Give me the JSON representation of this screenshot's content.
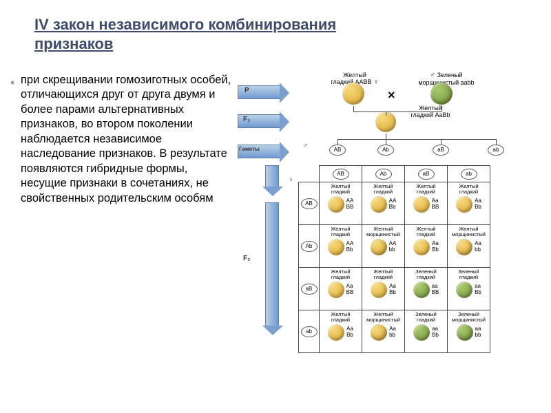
{
  "title": "IV закон независимого комбинирования признаков",
  "body": "при скрещивании гомозиготных особей, отличающихся друг от друга двумя и более парами альтернативных признаков, во втором поколении наблюдается независимое наследование признаков.  В результате появляются гибридные формы, несущие признаки в сочетаниях, не свойственных родительским особям",
  "labels": {
    "P": "P",
    "F1": "F₁",
    "F2": "F₂",
    "gametes": "Гаметы",
    "female": "♀",
    "male": "♂",
    "cross": "×"
  },
  "parents": {
    "p1": {
      "phenotype": "Желтый\nгладкий",
      "genotype": "AABB",
      "color": "yellow",
      "texture": "smooth"
    },
    "p2": {
      "phenotype": "Зеленый\nморщинистый",
      "genotype": "aabb",
      "color": "green",
      "texture": "wrinkled"
    }
  },
  "f1": {
    "phenotype": "Желтый\nгладкий",
    "genotype": "AaBb",
    "color": "yellow",
    "texture": "smooth"
  },
  "gametes": [
    "AB",
    "Ab",
    "aB",
    "ab"
  ],
  "punnett": {
    "rows": [
      "AB",
      "Ab",
      "aB",
      "ab"
    ],
    "cols": [
      "AB",
      "Ab",
      "aB",
      "ab"
    ],
    "cells": [
      [
        {
          "label": "Желтый\nгладкий",
          "geno1": "AA",
          "geno2": "BB",
          "color": "yellow",
          "tex": "smooth"
        },
        {
          "label": "Желтый\nгладкий",
          "geno1": "AA",
          "geno2": "Bb",
          "color": "yellow",
          "tex": "smooth"
        },
        {
          "label": "Желтый\nгладкий",
          "geno1": "Aa",
          "geno2": "BB",
          "color": "yellow",
          "tex": "smooth"
        },
        {
          "label": "Желтый\nгладкий",
          "geno1": "Aa",
          "geno2": "Bb",
          "color": "yellow",
          "tex": "smooth"
        }
      ],
      [
        {
          "label": "Желтый\nгладкий",
          "geno1": "AA",
          "geno2": "Bb",
          "color": "yellow",
          "tex": "smooth"
        },
        {
          "label": "Желтый\nморщинистый",
          "geno1": "AA",
          "geno2": "bb",
          "color": "yellow",
          "tex": "wrinkled"
        },
        {
          "label": "Желтый\nгладкий",
          "geno1": "Aa",
          "geno2": "Bb",
          "color": "yellow",
          "tex": "smooth"
        },
        {
          "label": "Желтый\nморщинистый",
          "geno1": "Aa",
          "geno2": "bb",
          "color": "yellow",
          "tex": "wrinkled"
        }
      ],
      [
        {
          "label": "Желтый\nгладкий",
          "geno1": "Aa",
          "geno2": "BB",
          "color": "yellow",
          "tex": "smooth"
        },
        {
          "label": "Желтый\nгладкий",
          "geno1": "Aa",
          "geno2": "Bb",
          "color": "yellow",
          "tex": "smooth"
        },
        {
          "label": "Зеленый\nгладкий",
          "geno1": "aa",
          "geno2": "BB",
          "color": "green",
          "tex": "smooth"
        },
        {
          "label": "Зеленый\nгладкий",
          "geno1": "aa",
          "geno2": "Bb",
          "color": "green",
          "tex": "smooth"
        }
      ],
      [
        {
          "label": "Желтый\nгладкий",
          "geno1": "Aa",
          "geno2": "Bb",
          "color": "yellow",
          "tex": "smooth"
        },
        {
          "label": "Желтый\nморщинистый",
          "geno1": "Aa",
          "geno2": "bb",
          "color": "yellow",
          "tex": "wrinkled"
        },
        {
          "label": "Зеленый\nгладкий",
          "geno1": "aa",
          "geno2": "Bb",
          "color": "green",
          "tex": "smooth"
        },
        {
          "label": "Зеленый\nморщинистый",
          "geno1": "aa",
          "geno2": "bb",
          "color": "green",
          "tex": "wrinkled"
        }
      ]
    ]
  },
  "colors": {
    "title": "#3d4c6b",
    "bullet": "#8aa88a",
    "arrow_fill": "#7aa0d0",
    "yellow_pea": "#d9a52f",
    "green_pea": "#6f8f3a",
    "grid": "#444444"
  }
}
